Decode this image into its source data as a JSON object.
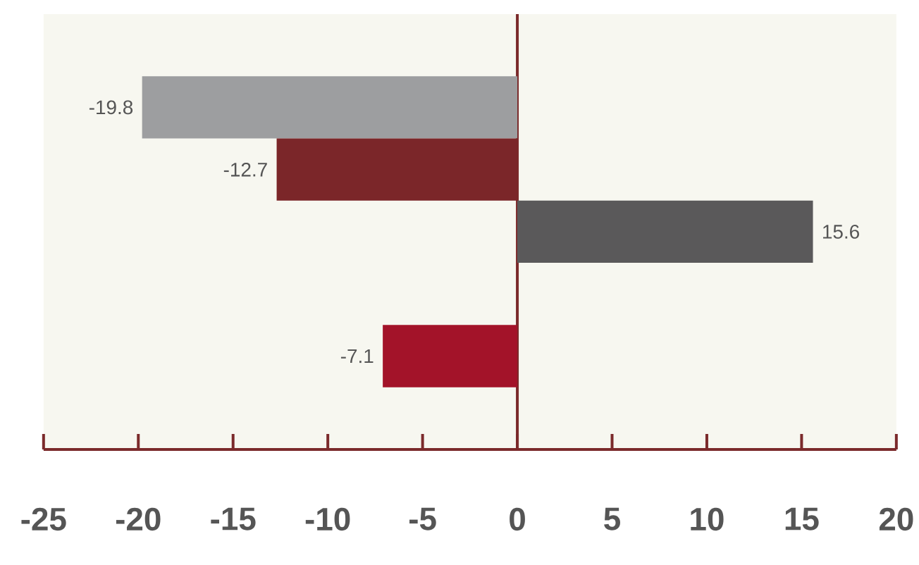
{
  "chart_data": {
    "type": "bar",
    "orientation": "horizontal",
    "categories": [
      null,
      null,
      null,
      null,
      null,
      null,
      null
    ],
    "values": [
      null,
      -19.8,
      -12.7,
      15.6,
      null,
      -7.1,
      null
    ],
    "colors": [
      null,
      "#9d9ea0",
      "#7b2629",
      "#5a595a",
      null,
      "#a31329",
      null
    ],
    "xlim": [
      -25,
      20
    ],
    "xticks": [
      -25,
      -20,
      -15,
      -10,
      -5,
      0,
      5,
      10,
      15,
      20
    ],
    "ref_lines": [
      {
        "axis": "x",
        "value": 0,
        "color": "#7b2a2b"
      }
    ],
    "data_labels": true
  }
}
